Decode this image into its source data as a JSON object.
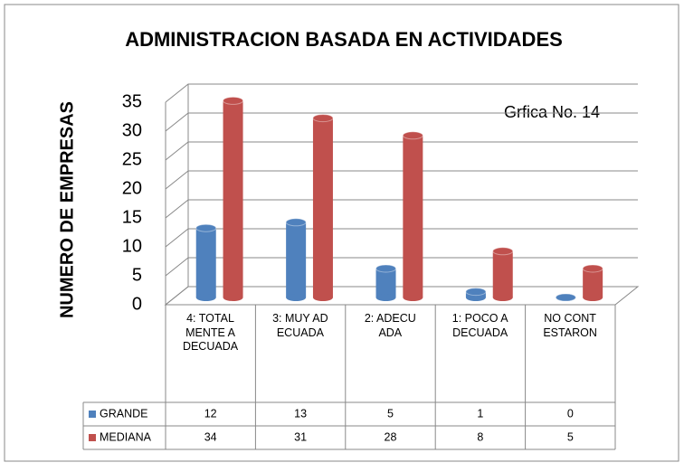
{
  "chart_data": {
    "type": "bar3d",
    "title": "ADMINISTRACION BASADA EN ACTIVIDADES",
    "ylabel": "NUMERO DE EMPRESAS",
    "annotation": "Grfica No. 14",
    "categories": [
      "4: TOTALMENTE ADECUADA",
      "3: MUY ADECUADA",
      "2: ADECUADA",
      "1: POCO ADECUADA",
      "NO CONTESTARON"
    ],
    "series": [
      {
        "name": "GRANDE",
        "color": "#4f81bd",
        "values": [
          12,
          13,
          5,
          1,
          0
        ]
      },
      {
        "name": "MEDIANA",
        "color": "#c0504d",
        "values": [
          34,
          31,
          28,
          8,
          5
        ]
      }
    ],
    "ylim": [
      0,
      35
    ],
    "yticks": [
      0,
      5,
      10,
      15,
      20,
      25,
      30,
      35
    ],
    "grid": true
  }
}
